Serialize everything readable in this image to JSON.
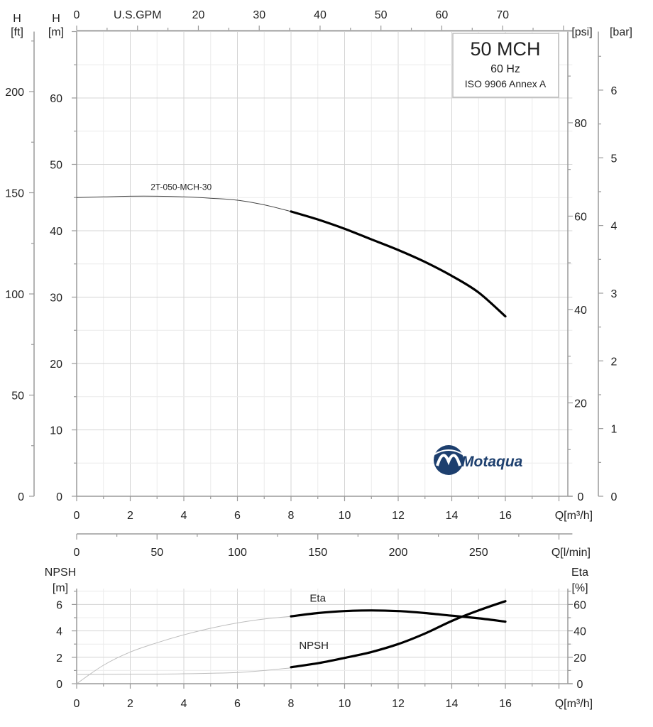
{
  "chart_data": [
    {
      "type": "line",
      "name": "head-curve",
      "title": "50 MCH",
      "frequency": "60 Hz",
      "standard": "ISO 9906 Annex A",
      "brand": "Motaqua",
      "curve_label": "2T-050-MCH-30",
      "x_axis": {
        "label": "Q[m³/h]",
        "range": [
          0,
          18.5
        ],
        "ticks": [
          0,
          2,
          4,
          6,
          8,
          10,
          12,
          14,
          16
        ]
      },
      "top_axis": {
        "label": "U.S.GPM",
        "ticks": [
          0,
          20,
          30,
          40,
          50,
          60,
          70
        ]
      },
      "lmin_axis": {
        "label": "Q[l/min]",
        "ticks": [
          0,
          50,
          100,
          150,
          200,
          250
        ]
      },
      "y_axis_m": {
        "label_line1": "H",
        "label_line2": "[m]",
        "range": [
          0,
          70
        ],
        "ticks": [
          0,
          10,
          20,
          30,
          40,
          50,
          60
        ]
      },
      "y_axis_ft": {
        "label_line1": "H",
        "label_line2": "[ft]",
        "ticks": [
          0,
          50,
          100,
          150,
          200
        ]
      },
      "y_axis_psi": {
        "label": "[psi]",
        "ticks": [
          0,
          20,
          40,
          60,
          80
        ]
      },
      "y_axis_bar": {
        "label": "[bar]",
        "ticks": [
          0,
          1,
          2,
          3,
          4,
          5,
          6
        ]
      },
      "series": [
        {
          "name": "2T-050-MCH-30 (extended range)",
          "style": "thin",
          "x": [
            0,
            1,
            2,
            3,
            4,
            5,
            6,
            7,
            8
          ],
          "y": [
            45.0,
            45.1,
            45.2,
            45.2,
            45.1,
            44.9,
            44.6,
            43.9,
            42.9
          ]
        },
        {
          "name": "2T-050-MCH-30 (operating range)",
          "style": "bold",
          "x": [
            8,
            9,
            10,
            11,
            12,
            13,
            14,
            15,
            16
          ],
          "y": [
            42.9,
            41.7,
            40.3,
            38.7,
            37.1,
            35.3,
            33.2,
            30.7,
            27.1
          ]
        }
      ]
    },
    {
      "type": "line",
      "name": "npsh-eta-curves",
      "x_axis": {
        "label": "Q[m³/h]",
        "range": [
          0,
          18.5
        ],
        "ticks": [
          0,
          2,
          4,
          6,
          8,
          10,
          12,
          14,
          16
        ]
      },
      "y_axis_left": {
        "label_line1": "NPSH",
        "label_line2": "[m]",
        "range": [
          0,
          7.2
        ],
        "ticks": [
          0,
          2,
          4,
          6
        ]
      },
      "y_axis_right": {
        "label_line1": "Eta",
        "label_line2": "[%]",
        "range": [
          0,
          72
        ],
        "ticks": [
          0,
          20,
          40,
          60
        ]
      },
      "series": [
        {
          "name": "Eta",
          "label": "Eta",
          "axis": "right",
          "style": "thin",
          "x": [
            0,
            1,
            2,
            3,
            4,
            5,
            6,
            7,
            8
          ],
          "y": [
            0,
            14,
            24,
            31,
            37,
            42,
            46,
            49,
            51
          ]
        },
        {
          "name": "Eta",
          "label": "Eta",
          "axis": "right",
          "style": "bold",
          "x": [
            8,
            9,
            10,
            11,
            12,
            13,
            14,
            15,
            16
          ],
          "y": [
            51,
            53.5,
            55,
            55.5,
            55,
            53.5,
            51.5,
            49.5,
            47
          ]
        },
        {
          "name": "NPSH",
          "label": "NPSH",
          "axis": "left",
          "style": "thin",
          "x": [
            0,
            2,
            4,
            6,
            7,
            8
          ],
          "y": [
            0.7,
            0.72,
            0.75,
            0.85,
            1.0,
            1.2
          ]
        },
        {
          "name": "NPSH",
          "label": "NPSH",
          "axis": "left",
          "style": "bold",
          "x": [
            8,
            9,
            10,
            11,
            12,
            13,
            14,
            15,
            16
          ],
          "y": [
            1.25,
            1.55,
            1.95,
            2.4,
            3.0,
            3.8,
            4.75,
            5.55,
            6.25
          ]
        }
      ]
    }
  ]
}
